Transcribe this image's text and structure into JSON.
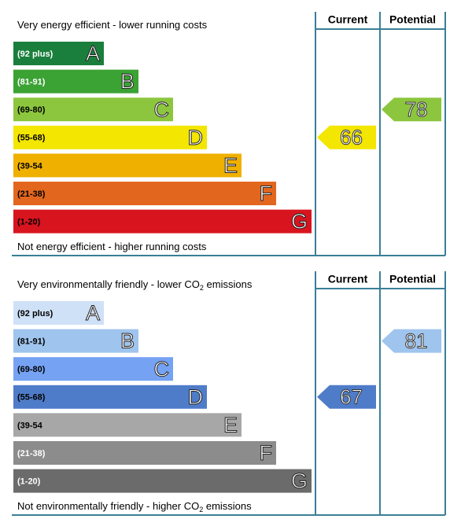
{
  "chart_data": [
    {
      "type": "rating-bands",
      "top_label": [
        "Very energy efficient - lower running costs"
      ],
      "bottom_label": [
        "Not energy efficient - higher running costs"
      ],
      "columns": [
        "Current",
        "Potential"
      ],
      "bands": [
        {
          "range": "(92 plus)",
          "letter": "A",
          "color": "#1a7f3c",
          "text_color": "#ffffff"
        },
        {
          "range": "(81-91)",
          "letter": "B",
          "color": "#3ba234",
          "text_color": "#ffffff"
        },
        {
          "range": "(69-80)",
          "letter": "C",
          "color": "#8cc63e",
          "text_color": "#000000"
        },
        {
          "range": "(55-68)",
          "letter": "D",
          "color": "#f3e600",
          "text_color": "#000000"
        },
        {
          "range": "(39-54",
          "letter": "E",
          "color": "#efb000",
          "text_color": "#000000"
        },
        {
          "range": "(21-38)",
          "letter": "F",
          "color": "#e3661f",
          "text_color": "#000000"
        },
        {
          "range": "(1-20)",
          "letter": "G",
          "color": "#d8141f",
          "text_color": "#000000"
        }
      ],
      "values": [
        66,
        78
      ]
    },
    {
      "type": "rating-bands",
      "top_label": [
        "Very environmentally friendly - lower CO",
        "2",
        " emissions"
      ],
      "bottom_label": [
        "Not environmentally friendly - higher CO",
        "2",
        " emissions"
      ],
      "columns": [
        "Current",
        "Potential"
      ],
      "bands": [
        {
          "range": "(92 plus)",
          "letter": "A",
          "color": "#cfe1f7",
          "text_color": "#000000"
        },
        {
          "range": "(81-91)",
          "letter": "B",
          "color": "#9fc4ee",
          "text_color": "#000000"
        },
        {
          "range": "(69-80)",
          "letter": "C",
          "color": "#76a2f3",
          "text_color": "#000000"
        },
        {
          "range": "(55-68)",
          "letter": "D",
          "color": "#4f7cc9",
          "text_color": "#000000"
        },
        {
          "range": "(39-54",
          "letter": "E",
          "color": "#a7a7a7",
          "text_color": "#000000"
        },
        {
          "range": "(21-38)",
          "letter": "F",
          "color": "#8c8c8c",
          "text_color": "#ffffff"
        },
        {
          "range": "(1-20)",
          "letter": "G",
          "color": "#6b6b6b",
          "text_color": "#ffffff"
        }
      ],
      "values": [
        67,
        81
      ]
    }
  ]
}
